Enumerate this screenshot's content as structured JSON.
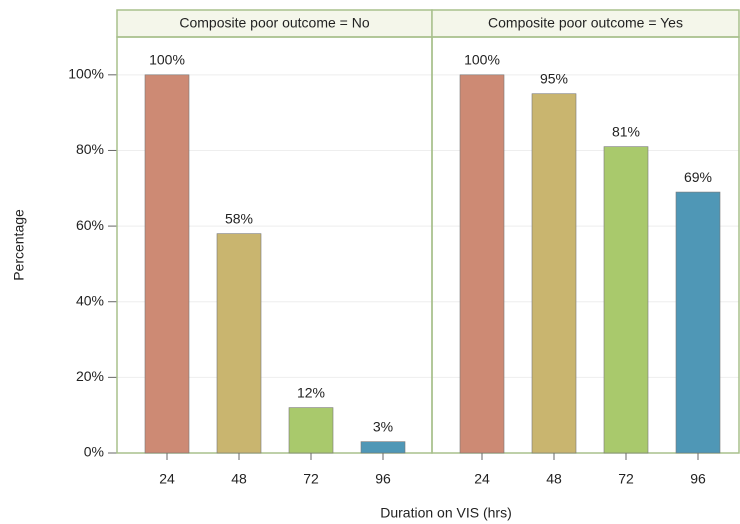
{
  "chart_data": [
    {
      "type": "bar",
      "title": "Composite poor outcome = No",
      "ylabel": "Percentage",
      "xlabel": "Duration on VIS (hrs)",
      "categories": [
        "24",
        "48",
        "72",
        "96"
      ],
      "values": [
        100,
        58,
        12,
        3
      ],
      "value_labels": [
        "100%",
        "58%",
        "12%",
        "3%"
      ],
      "colors": [
        "#cd8a74",
        "#c9b56f",
        "#a9c96c",
        "#4f97b6"
      ],
      "ylim": [
        0,
        110
      ],
      "yticks": [
        {
          "value": 0,
          "label": "0%"
        },
        {
          "value": 20,
          "label": "20%"
        },
        {
          "value": 40,
          "label": "40%"
        },
        {
          "value": 60,
          "label": "60%"
        },
        {
          "value": 80,
          "label": "80%"
        },
        {
          "value": 100,
          "label": "100%"
        }
      ],
      "grid": true
    },
    {
      "type": "bar",
      "title": "Composite poor outcome = Yes",
      "categories": [
        "24",
        "48",
        "72",
        "96"
      ],
      "values": [
        100,
        95,
        81,
        69
      ],
      "value_labels": [
        "100%",
        "95%",
        "81%",
        "69%"
      ],
      "colors": [
        "#cd8a74",
        "#c9b56f",
        "#a9c96c",
        "#4f97b6"
      ],
      "ylim": [
        0,
        110
      ],
      "grid": true
    }
  ]
}
